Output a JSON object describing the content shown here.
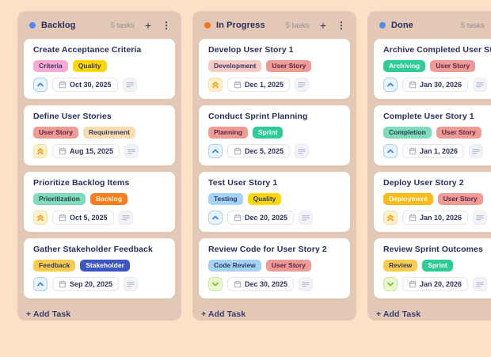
{
  "palette": {
    "page_bg": "#fbe2c6",
    "column_bg": "#e3c9b5",
    "card_bg": "#ffffff",
    "title_text": "#272e5d",
    "muted_text": "#8f8c9d",
    "backlog_dot": "#4a8cf5",
    "in_progress_dot": "#f4731c",
    "done_dot": "#4a8cf5",
    "priority_medium_accent": "#3c82f6",
    "priority_high_accent": "#f2a31c",
    "priority_low_accent": "#7fc31d"
  },
  "icons": {
    "add_card": "plus-icon",
    "column_menu": "kebab-menu-icon",
    "due_date": "calendar-icon",
    "description": "notes-icon",
    "priority_high": "chevrons-up-icon",
    "priority_medium": "chevron-up-icon",
    "priority_low": "chevron-down-icon"
  },
  "board": {
    "columns": [
      {
        "name": "Backlog",
        "dot": "blue",
        "count": "5 tasks",
        "plus": "+",
        "kebab": "⋮",
        "add_task": "+ Add Task",
        "tasks": [
          {
            "title": "Create Acceptance Criteria",
            "tags": [
              {
                "label": "Criteria",
                "style": "pink"
              },
              {
                "label": "Quality",
                "style": "gold"
              }
            ],
            "priority": "medium",
            "due": "Oct 30, 2025"
          },
          {
            "title": "Define User Stories",
            "tags": [
              {
                "label": "User Story",
                "style": "salmon"
              },
              {
                "label": "Requirement",
                "style": "cream"
              }
            ],
            "priority": "high",
            "due": "Aug 15, 2025"
          },
          {
            "title": "Prioritize Backlog Items",
            "tags": [
              {
                "label": "Prioritization",
                "style": "mint"
              },
              {
                "label": "Backlog",
                "style": "orange"
              }
            ],
            "priority": "high",
            "due": "Oct 5, 2025"
          },
          {
            "title": "Gather Stakeholder Feedback",
            "tags": [
              {
                "label": "Feedback",
                "style": "amber"
              },
              {
                "label": "Stakeholder",
                "style": "indigo"
              }
            ],
            "priority": "medium",
            "due": "Sep 20, 2025"
          }
        ]
      },
      {
        "name": "In Progress",
        "dot": "orange",
        "count": "5 tasks",
        "plus": "+",
        "kebab": "⋮",
        "add_task": "+ Add Task",
        "tasks": [
          {
            "title": "Develop User Story 1",
            "tags": [
              {
                "label": "Development",
                "style": "rose"
              },
              {
                "label": "User Story",
                "style": "salmon"
              }
            ],
            "priority": "high",
            "due": "Dec 1, 2025"
          },
          {
            "title": "Conduct Sprint Planning",
            "tags": [
              {
                "label": "Planning",
                "style": "salmon"
              },
              {
                "label": "Sprint",
                "style": "green"
              }
            ],
            "priority": "medium",
            "due": "Dec 5, 2025"
          },
          {
            "title": "Test User Story 1",
            "tags": [
              {
                "label": "Testing",
                "style": "sky"
              },
              {
                "label": "Quality",
                "style": "gold"
              }
            ],
            "priority": "medium",
            "due": "Dec 20, 2025"
          },
          {
            "title": "Review Code for User Story 2",
            "tags": [
              {
                "label": "Code Review",
                "style": "sky"
              },
              {
                "label": "User Story",
                "style": "salmon"
              }
            ],
            "priority": "low",
            "due": "Dec 30, 2025"
          }
        ]
      },
      {
        "name": "Done",
        "dot": "blue",
        "count": "5 tasks",
        "plus": "+",
        "kebab": "⋮",
        "add_task": "+ Add Task",
        "tasks": [
          {
            "title": "Archive Completed User Stories",
            "tags": [
              {
                "label": "Archiving",
                "style": "green"
              },
              {
                "label": "User Story",
                "style": "salmon"
              }
            ],
            "priority": "medium",
            "due": "Jan 30, 2026"
          },
          {
            "title": "Complete User Story 1",
            "tags": [
              {
                "label": "Completion",
                "style": "mint"
              },
              {
                "label": "User Story",
                "style": "salmon"
              }
            ],
            "priority": "medium",
            "due": "Jan 1, 2026"
          },
          {
            "title": "Deploy User Story 2",
            "tags": [
              {
                "label": "Deployment",
                "style": "amber-deep"
              },
              {
                "label": "User Story",
                "style": "salmon"
              }
            ],
            "priority": "high",
            "due": "Jan 10, 2026"
          },
          {
            "title": "Review Sprint Outcomes",
            "tags": [
              {
                "label": "Review",
                "style": "amber"
              },
              {
                "label": "Sprint",
                "style": "green"
              }
            ],
            "priority": "low",
            "due": "Jan 20, 2026"
          }
        ]
      }
    ]
  }
}
